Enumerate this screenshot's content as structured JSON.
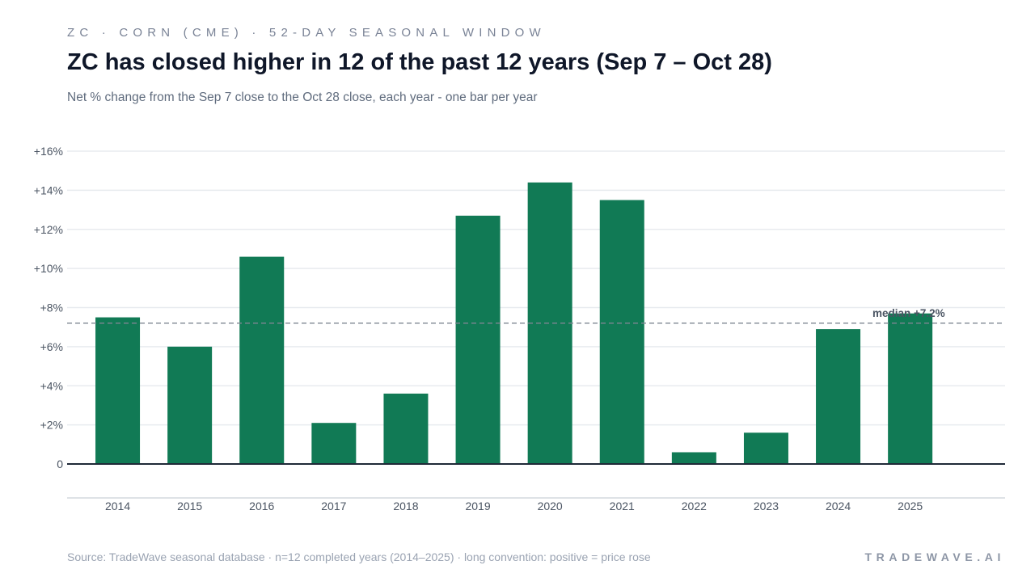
{
  "header": {
    "kicker": "ZC · CORN (CME) · 52-DAY SEASONAL WINDOW",
    "title": "ZC has closed higher in 12 of the past 12 years (Sep 7 – Oct 28)",
    "subtitle": "Net % change from the Sep 7 close to the Oct 28 close, each year - one bar per year"
  },
  "footer": {
    "source": "Source: TradeWave seasonal database · n=12 completed years (2014–2025) · long convention: positive = price rose",
    "brand": "TRADEWAVE.AI"
  },
  "colors": {
    "bar": "#117a55",
    "axis": "#1f2937",
    "grid": "#e8ebef",
    "median_line": "#7f8793",
    "tick_text": "#4b5563"
  },
  "chart_data": {
    "type": "bar",
    "categories": [
      "2014",
      "2015",
      "2016",
      "2017",
      "2018",
      "2019",
      "2020",
      "2021",
      "2022",
      "2023",
      "2024",
      "2025"
    ],
    "values": [
      7.5,
      6.0,
      10.6,
      2.1,
      3.6,
      12.7,
      14.4,
      13.5,
      0.6,
      1.6,
      6.9,
      7.7
    ],
    "ylim": [
      0,
      16
    ],
    "yticks": [
      0,
      2,
      4,
      6,
      8,
      10,
      12,
      14,
      16
    ],
    "ytick_labels": [
      "0",
      "+2%",
      "+4%",
      "+6%",
      "+8%",
      "+10%",
      "+12%",
      "+14%",
      "+16%"
    ],
    "grid": true,
    "median": {
      "value": 7.2,
      "label": "median +7.2%"
    }
  }
}
